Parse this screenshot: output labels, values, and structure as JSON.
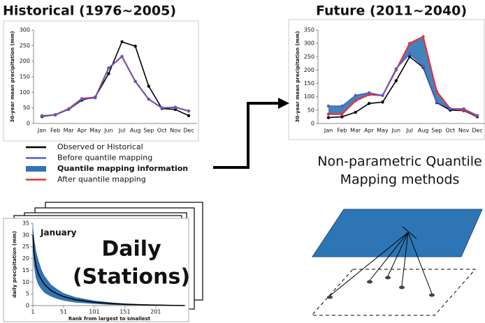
{
  "chart_data": [
    {
      "type": "line",
      "title": "Historical (1976~2005)",
      "y_label": "30-year mean precipitation (mm)",
      "categories": [
        "Jan",
        "Feb",
        "Mar",
        "Apr",
        "May",
        "Jun",
        "Jul",
        "Aug",
        "Sep",
        "Oct",
        "Nov",
        "Dec"
      ],
      "ylim": [
        0,
        300
      ],
      "yticks": [
        0,
        50,
        100,
        150,
        200,
        250,
        300
      ],
      "series": [
        {
          "name": "Observed or Historical",
          "color": "#000000",
          "values": [
            22,
            28,
            45,
            75,
            85,
            160,
            262,
            248,
            120,
            48,
            45,
            25
          ]
        },
        {
          "name": "Before quantile mapping",
          "color": "#4f5fc8",
          "values": [
            25,
            27,
            45,
            78,
            82,
            178,
            215,
            135,
            78,
            50,
            52,
            40
          ]
        },
        {
          "name": "After quantile mapping",
          "color": "#e8303a",
          "values": [
            24,
            28,
            47,
            80,
            84,
            178,
            215,
            135,
            78,
            50,
            52,
            40
          ]
        }
      ],
      "band": {
        "name": "Quantile mapping information",
        "color": "#2e75b6"
      }
    },
    {
      "type": "line",
      "title": "Future (2011~2040)",
      "y_label": "30-year mean precipitation (mm)",
      "categories": [
        "Jan",
        "Feb",
        "Mar",
        "Apr",
        "May",
        "Jun",
        "Jul",
        "Aug",
        "Sep",
        "Oct",
        "Nov",
        "Dec"
      ],
      "ylim": [
        0,
        350
      ],
      "yticks": [
        0,
        50,
        100,
        150,
        200,
        250,
        300,
        350
      ],
      "series": [
        {
          "color": "#000000",
          "values": [
            22,
            25,
            42,
            75,
            80,
            160,
            250,
            210,
            78,
            50,
            48,
            25
          ]
        },
        {
          "color": "#4f5fc8",
          "values": [
            65,
            65,
            105,
            115,
            105,
            205,
            260,
            215,
            80,
            55,
            55,
            30
          ]
        },
        {
          "color": "#e8303a",
          "values": [
            35,
            35,
            85,
            108,
            105,
            200,
            300,
            325,
            120,
            55,
            50,
            28
          ]
        }
      ],
      "band": {
        "color": "#2e75b6"
      }
    },
    {
      "type": "rank",
      "title": "January",
      "y_label": "daily precipitation (mm)",
      "x_label": "Rank from largest to smallest",
      "x": [
        1,
        3,
        6,
        10,
        15,
        20,
        30,
        40,
        51,
        70,
        101,
        130,
        151,
        180,
        201,
        230,
        248
      ],
      "values": [
        30,
        22,
        17,
        13.5,
        11,
        9,
        6.5,
        5,
        3.8,
        2.5,
        1.4,
        0.8,
        0.5,
        0.3,
        0.2,
        0.1,
        0
      ],
      "band_upper": [
        33,
        28,
        23,
        19,
        15,
        12.5,
        9,
        7,
        5.2,
        3.5,
        2,
        1.2,
        0.8,
        0.5,
        0.3,
        0.2,
        0.1
      ],
      "band_lower": [
        28,
        17,
        12,
        9,
        7,
        5.5,
        4,
        3,
        2.2,
        1.4,
        0.8,
        0.4,
        0.3,
        0.2,
        0.1,
        0,
        0
      ],
      "color": "#000000",
      "band_color": "#2e75b6",
      "xlim": [
        1,
        250
      ],
      "xticks": [
        1,
        51,
        101,
        151,
        201
      ],
      "ylim": [
        0,
        35
      ],
      "yticks": [
        0,
        5,
        10,
        15,
        20,
        25,
        30,
        35
      ]
    }
  ],
  "annotation": [
    "Daily",
    "(Stations)"
  ],
  "caption": [
    "Non-parametric Quantile",
    "Mapping methods"
  ]
}
